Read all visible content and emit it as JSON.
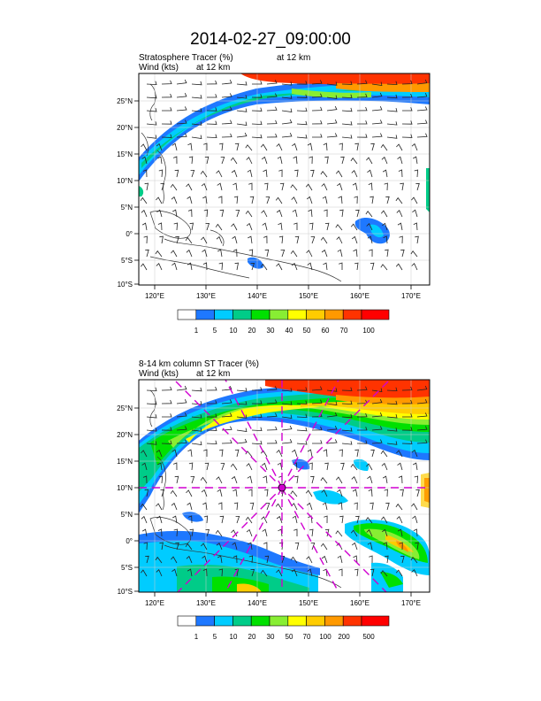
{
  "title": "2014-02-27_09:00:00",
  "panels": [
    {
      "title_left": "Stratosphere Tracer   (%)",
      "title_right": "at   12 km",
      "subtitle_left": "Wind   (kts)",
      "subtitle_right": "at   12 km",
      "colorbar_labels": [
        "1",
        "5",
        "10",
        "20",
        "30",
        "40",
        "50",
        "60",
        "70",
        "100"
      ]
    },
    {
      "title_left": "8-14 km column ST Tracer   (%)",
      "title_right": "",
      "subtitle_left": "Wind   (kts)",
      "subtitle_right": "at   12 km",
      "colorbar_labels": [
        "1",
        "5",
        "10",
        "20",
        "30",
        "50",
        "70",
        "100",
        "200",
        "500"
      ]
    }
  ],
  "lat_labels": [
    "25°N",
    "20°N",
    "15°N",
    "10°N",
    "5°N",
    "0°",
    "5°S",
    "10°S"
  ],
  "lon_labels": [
    "120°E",
    "130°E",
    "140°E",
    "150°E",
    "160°E",
    "170°E"
  ],
  "colors": {
    "c1": "#1e78ff",
    "c2": "#00ccff",
    "c3": "#00cc88",
    "c4": "#00e000",
    "c5": "#88ee33",
    "c6": "#ffff00",
    "c7": "#ffcc00",
    "c8": "#ff9900",
    "c9": "#ff3300",
    "marker": "#d000d0"
  }
}
